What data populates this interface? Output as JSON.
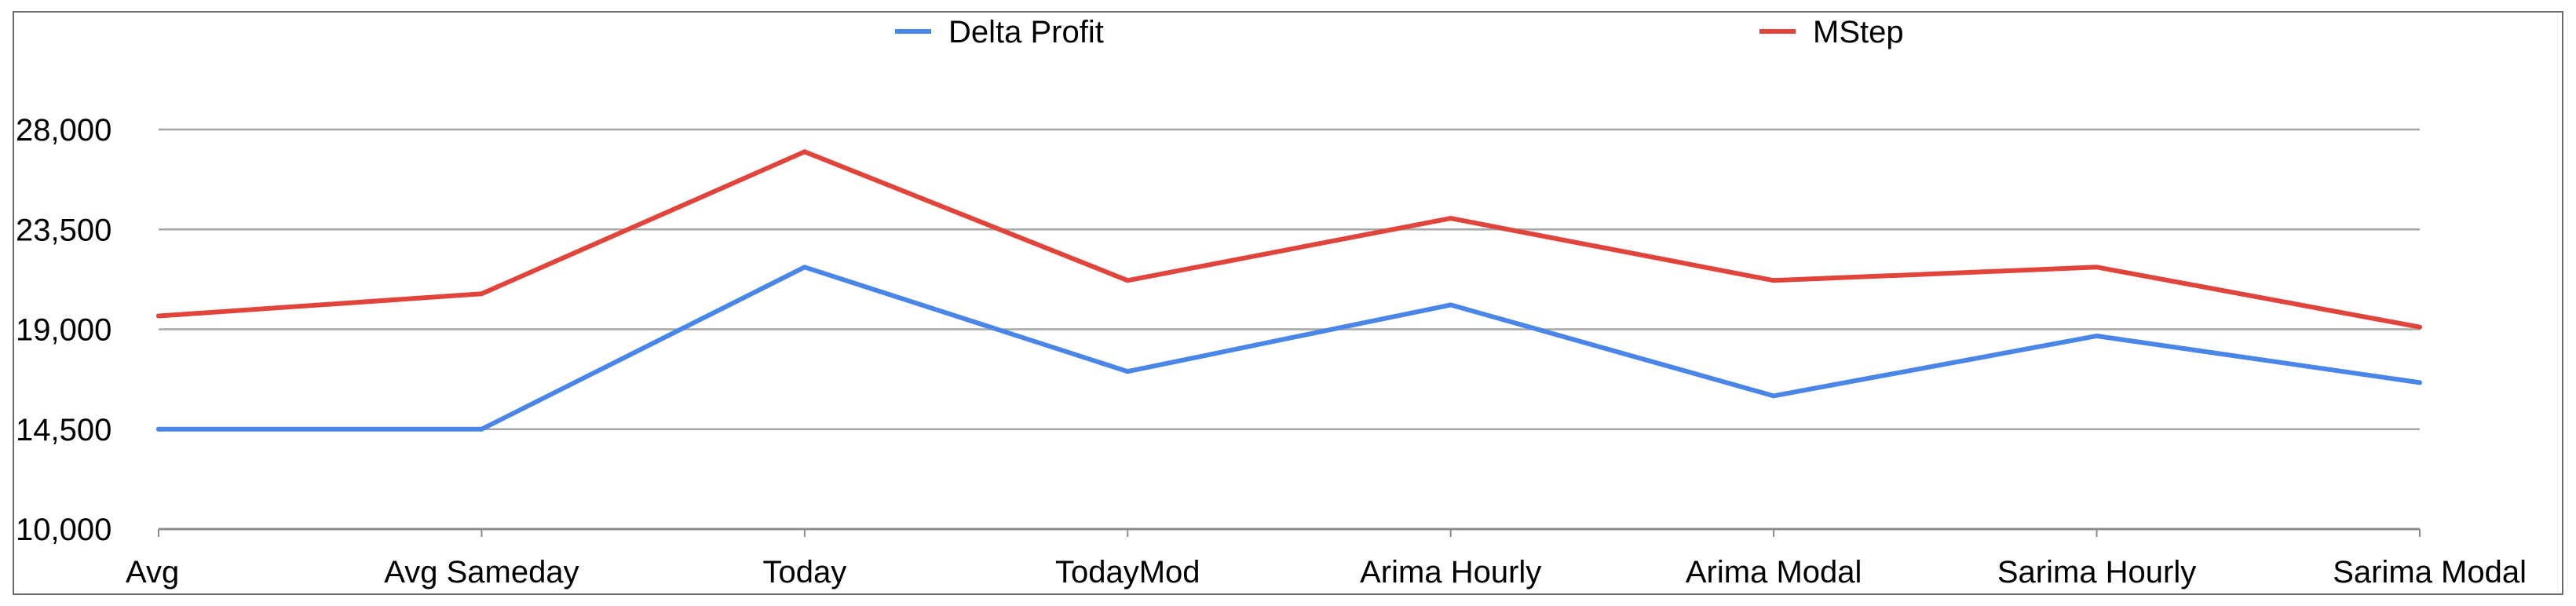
{
  "chart_data": {
    "type": "line",
    "categories": [
      "Avg",
      "Avg Sameday",
      "Today",
      "TodayMod",
      "Arima Hourly",
      "Arima Modal",
      "Sarima Hourly",
      "Sarima Modal"
    ],
    "series": [
      {
        "name": "Delta Profit",
        "color": "#4a86e8",
        "values": [
          14500,
          14500,
          21800,
          17100,
          20100,
          16000,
          18700,
          16600
        ]
      },
      {
        "name": "MStep",
        "color": "#e0443a",
        "values": [
          19600,
          20600,
          27000,
          21200,
          24000,
          21200,
          21800,
          19100
        ]
      }
    ],
    "title": "",
    "xlabel": "",
    "ylabel": "",
    "ylim": [
      10000,
      28000
    ],
    "yticks": [
      "10,000",
      "14,500",
      "19,000",
      "23,500",
      "28,000"
    ],
    "ytick_values": [
      10000,
      14500,
      19000,
      23500,
      28000
    ],
    "grid": true,
    "legend_position": "top",
    "gridline_color": "#a6a6a6"
  }
}
